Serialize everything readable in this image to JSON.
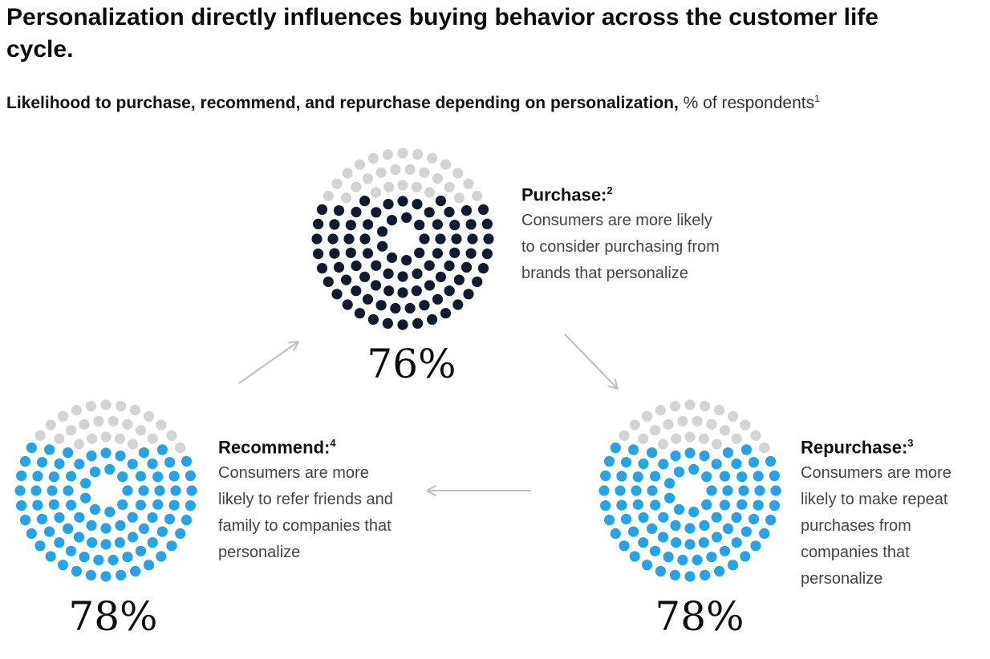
{
  "title": "Personalization directly influences buying behavior across the customer life cycle.",
  "subtitle": {
    "main": "Likelihood to purchase, recommend, and repurchase depending on personalization,",
    "unit": " % of respondents",
    "footnote": "1"
  },
  "chart_data": {
    "type": "dot-circle",
    "unit": "% of respondents",
    "series": [
      {
        "label": "Purchase:",
        "footnote": "2",
        "value": 76,
        "value_label": "76%",
        "description": "Consumers are more likely to consider purchasing from brands that personalize",
        "color": "#0e1c2f"
      },
      {
        "label": "Repurchase:",
        "footnote": "3",
        "value": 78,
        "value_label": "78%",
        "description": "Consumers are more likely to make repeat purchases from companies that personalize",
        "color": "#27a3e3"
      },
      {
        "label": "Recommend:",
        "footnote": "4",
        "value": 78,
        "value_label": "78%",
        "description": "Consumers are more likely to refer friends and family to companies that personalize",
        "color": "#27a3e3"
      }
    ],
    "rest_color": "#d3d3d3",
    "flow": [
      "Purchase:",
      "Repurchase:",
      "Recommend:",
      "Purchase:"
    ],
    "arrow_color": "#bdbdbd"
  }
}
